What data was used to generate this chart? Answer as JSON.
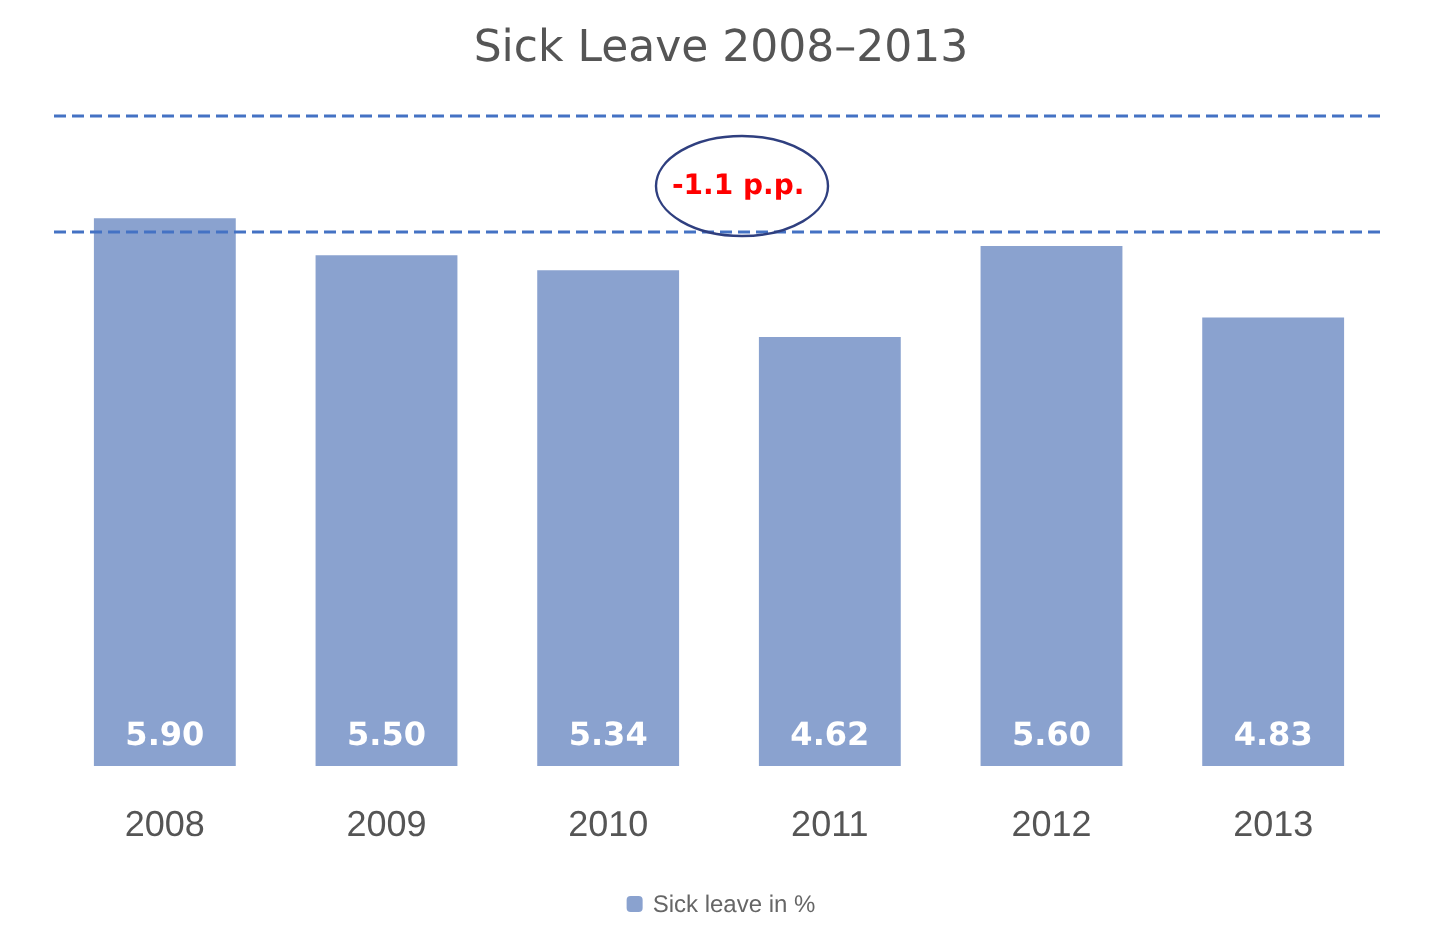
{
  "chart_data": {
    "type": "bar",
    "title": "Sick Leave 2008–2013",
    "categories": [
      "2008",
      "2009",
      "2010",
      "2011",
      "2012",
      "2013"
    ],
    "series": [
      {
        "name": "Sick leave in %",
        "color": "#8aa2cf",
        "values": [
          5.9,
          5.5,
          5.34,
          4.62,
          5.6,
          4.83
        ],
        "value_labels": [
          "5.90",
          "5.50",
          "5.34",
          "4.62",
          "5.60",
          "4.83"
        ]
      }
    ],
    "legend": "bottom",
    "ref_lines": [
      {
        "axis": "y",
        "value": 7.0,
        "label": null,
        "color": "#4472c4",
        "line_style": "dashed"
      },
      {
        "axis": "y",
        "value": 5.75,
        "label": null,
        "color": "#4472c4",
        "line_style": "dashed"
      }
    ],
    "annotations": [
      "-1.1 p.p."
    ]
  }
}
